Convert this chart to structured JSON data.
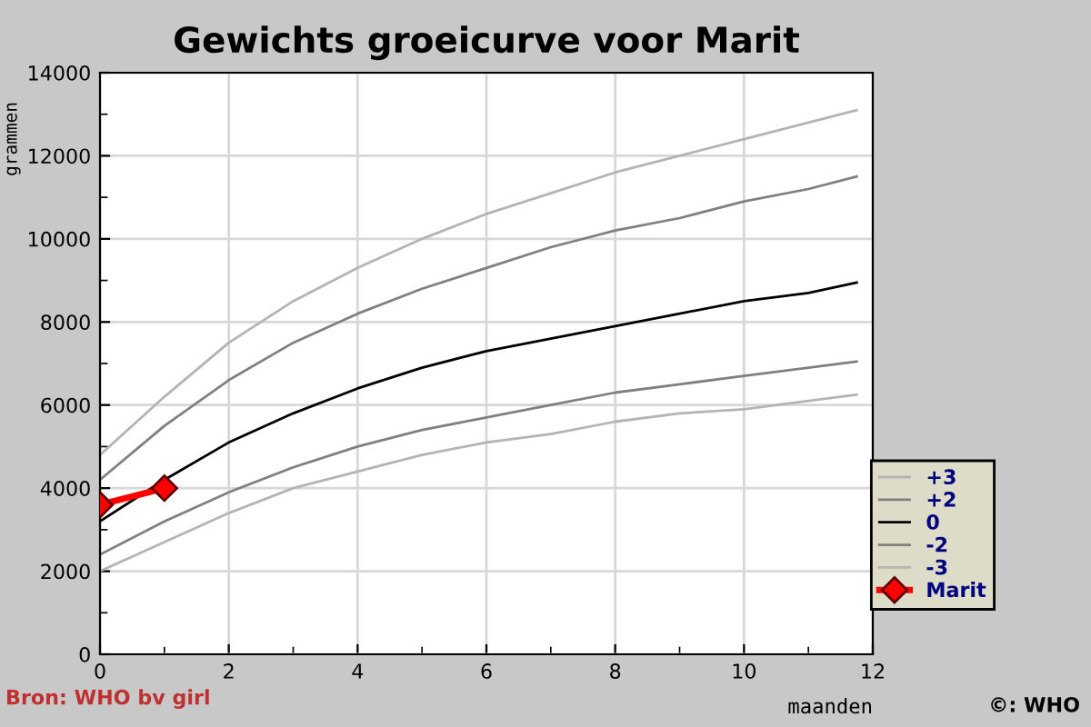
{
  "chart_data": {
    "type": "line",
    "title": "Gewichts groeicurve voor Marit",
    "xlabel": "maanden",
    "ylabel": "grammen",
    "x": [
      0,
      1,
      2,
      3,
      4,
      5,
      6,
      7,
      8,
      9,
      10,
      11,
      11.75
    ],
    "series": [
      {
        "name": "+3",
        "color": "#b4b4b4",
        "values": [
          4800,
          6200,
          7500,
          8500,
          9300,
          10000,
          10600,
          11100,
          11600,
          12000,
          12400,
          12800,
          13100
        ]
      },
      {
        "name": "+2",
        "color": "#808080",
        "values": [
          4200,
          5500,
          6600,
          7500,
          8200,
          8800,
          9300,
          9800,
          10200,
          10500,
          10900,
          11200,
          11500
        ]
      },
      {
        "name": "0",
        "color": "#000000",
        "values": [
          3200,
          4200,
          5100,
          5800,
          6400,
          6900,
          7300,
          7600,
          7900,
          8200,
          8500,
          8700,
          8950
        ]
      },
      {
        "name": "-2",
        "color": "#808080",
        "values": [
          2400,
          3200,
          3900,
          4500,
          5000,
          5400,
          5700,
          6000,
          6300,
          6500,
          6700,
          6900,
          7050
        ]
      },
      {
        "name": "-3",
        "color": "#b4b4b4",
        "values": [
          2000,
          2700,
          3400,
          4000,
          4400,
          4800,
          5100,
          5300,
          5600,
          5800,
          5900,
          6100,
          6250
        ]
      },
      {
        "name": "Marit",
        "color": "#ff0000",
        "x": [
          0,
          1
        ],
        "values": [
          3600,
          4000
        ],
        "marker": "diamond"
      }
    ],
    "xlim": [
      0,
      12
    ],
    "xticks": [
      0,
      2,
      4,
      6,
      8,
      10,
      12
    ],
    "ylim": [
      0,
      14000
    ],
    "yticks": [
      0,
      2000,
      4000,
      6000,
      8000,
      10000,
      12000,
      14000
    ],
    "grid": true,
    "legend": "bottom right",
    "annotations": [
      "Bron: WHO bv girl",
      "©: WHO"
    ]
  }
}
